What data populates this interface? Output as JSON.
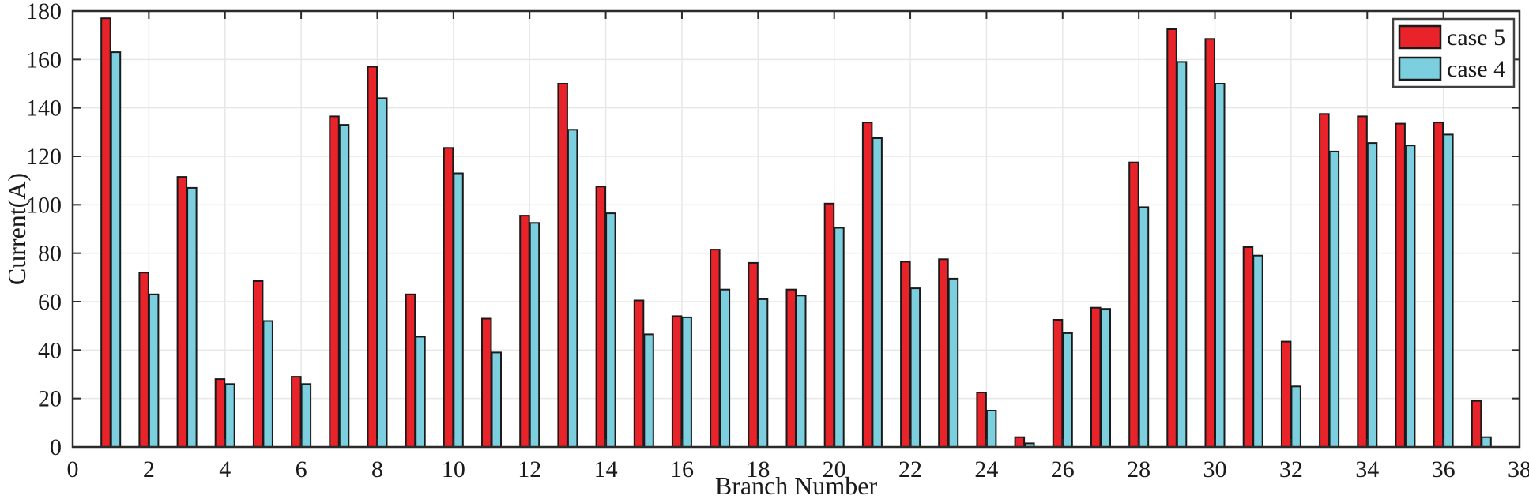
{
  "chart_data": {
    "type": "bar",
    "title": "",
    "xlabel": "Branch Number",
    "ylabel": "Current(A)",
    "xlim": [
      0,
      38
    ],
    "ylim": [
      0,
      180
    ],
    "x_tick_step": 2,
    "y_tick_step": 20,
    "grid": true,
    "legend_position": "top-right",
    "categories": [
      1,
      2,
      3,
      4,
      5,
      6,
      7,
      8,
      9,
      10,
      11,
      12,
      13,
      14,
      15,
      16,
      17,
      18,
      19,
      20,
      21,
      22,
      23,
      24,
      25,
      26,
      27,
      28,
      29,
      30,
      31,
      32,
      33,
      34,
      35,
      36,
      37
    ],
    "series": [
      {
        "name": "case 5",
        "color": "#e8232a",
        "values": [
          177,
          72,
          111.5,
          28,
          68.5,
          29,
          136.5,
          157,
          63,
          123.5,
          53,
          95.5,
          150,
          107.5,
          60.5,
          54,
          81.5,
          76,
          65,
          100.5,
          134,
          76.5,
          77.5,
          22.5,
          4,
          52.5,
          57.5,
          117.5,
          172.5,
          168.5,
          82.5,
          43.5,
          137.5,
          136.5,
          133.5,
          134,
          19
        ]
      },
      {
        "name": "case 4",
        "color": "#7ccfdf",
        "values": [
          163,
          63,
          107,
          26,
          52,
          26,
          133,
          144,
          45.5,
          113,
          39,
          92.5,
          131,
          96.5,
          46.5,
          53.5,
          65,
          61,
          62.5,
          90.5,
          127.5,
          65.5,
          69.5,
          15,
          1.5,
          47,
          57,
          99,
          159,
          150,
          79,
          25,
          122,
          125.5,
          124.5,
          129,
          4
        ]
      }
    ],
    "colors": {
      "bar_border": "#1a1a1a",
      "axis_frame": "#2b2b2b",
      "gridline": "#e7e7e7",
      "legend_border": "#404040",
      "background": "#ffffff",
      "text": "#1a1a1a"
    }
  }
}
